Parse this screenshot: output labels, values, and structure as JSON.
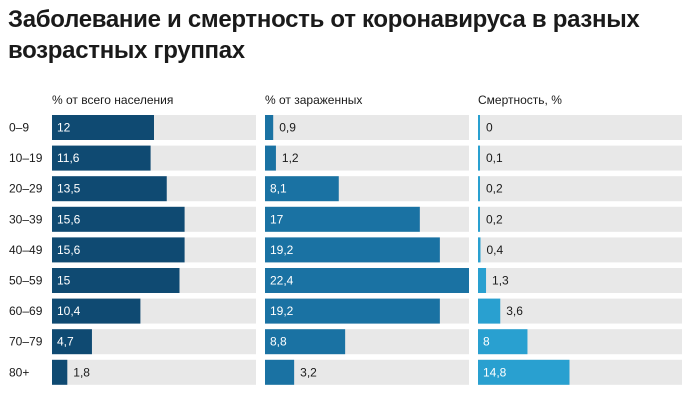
{
  "title": "Заболевание и смертность от коронавируса в разных возрастных группах",
  "chart_data": {
    "type": "bar",
    "categories": [
      "0–9",
      "10–19",
      "20–29",
      "30–39",
      "40–49",
      "50–59",
      "60–69",
      "70–79",
      "80+"
    ],
    "series": [
      {
        "name": "% от всего населения",
        "values": [
          12,
          11.6,
          13.5,
          15.6,
          15.6,
          15,
          10.4,
          4.7,
          1.8
        ],
        "labels": [
          "12",
          "11,6",
          "13,5",
          "15,6",
          "15,6",
          "15",
          "10,4",
          "4,7",
          "1,8"
        ],
        "xlim": [
          0,
          24
        ],
        "color": "#0f4a72"
      },
      {
        "name": "% от зараженных",
        "values": [
          0.9,
          1.2,
          8.1,
          17,
          19.2,
          22.4,
          19.2,
          8.8,
          3.2
        ],
        "labels": [
          "0,9",
          "1,2",
          "8,1",
          "17",
          "19,2",
          "22,4",
          "19,2",
          "8,8",
          "3,2"
        ],
        "xlim": [
          0,
          22.4
        ],
        "color": "#1a72a3"
      },
      {
        "name": "Смертность, %",
        "values": [
          0,
          0.1,
          0.2,
          0.2,
          0.4,
          1.3,
          3.6,
          8,
          14.8
        ],
        "labels": [
          "0",
          "0,1",
          "0,2",
          "0,2",
          "0,4",
          "1,3",
          "3,6",
          "8",
          "14,8"
        ],
        "xlim": [
          0,
          33
        ],
        "color": "#29a0d0"
      }
    ],
    "colors": {
      "track": "#e8e8e8"
    },
    "legend": "none",
    "grid": false
  }
}
